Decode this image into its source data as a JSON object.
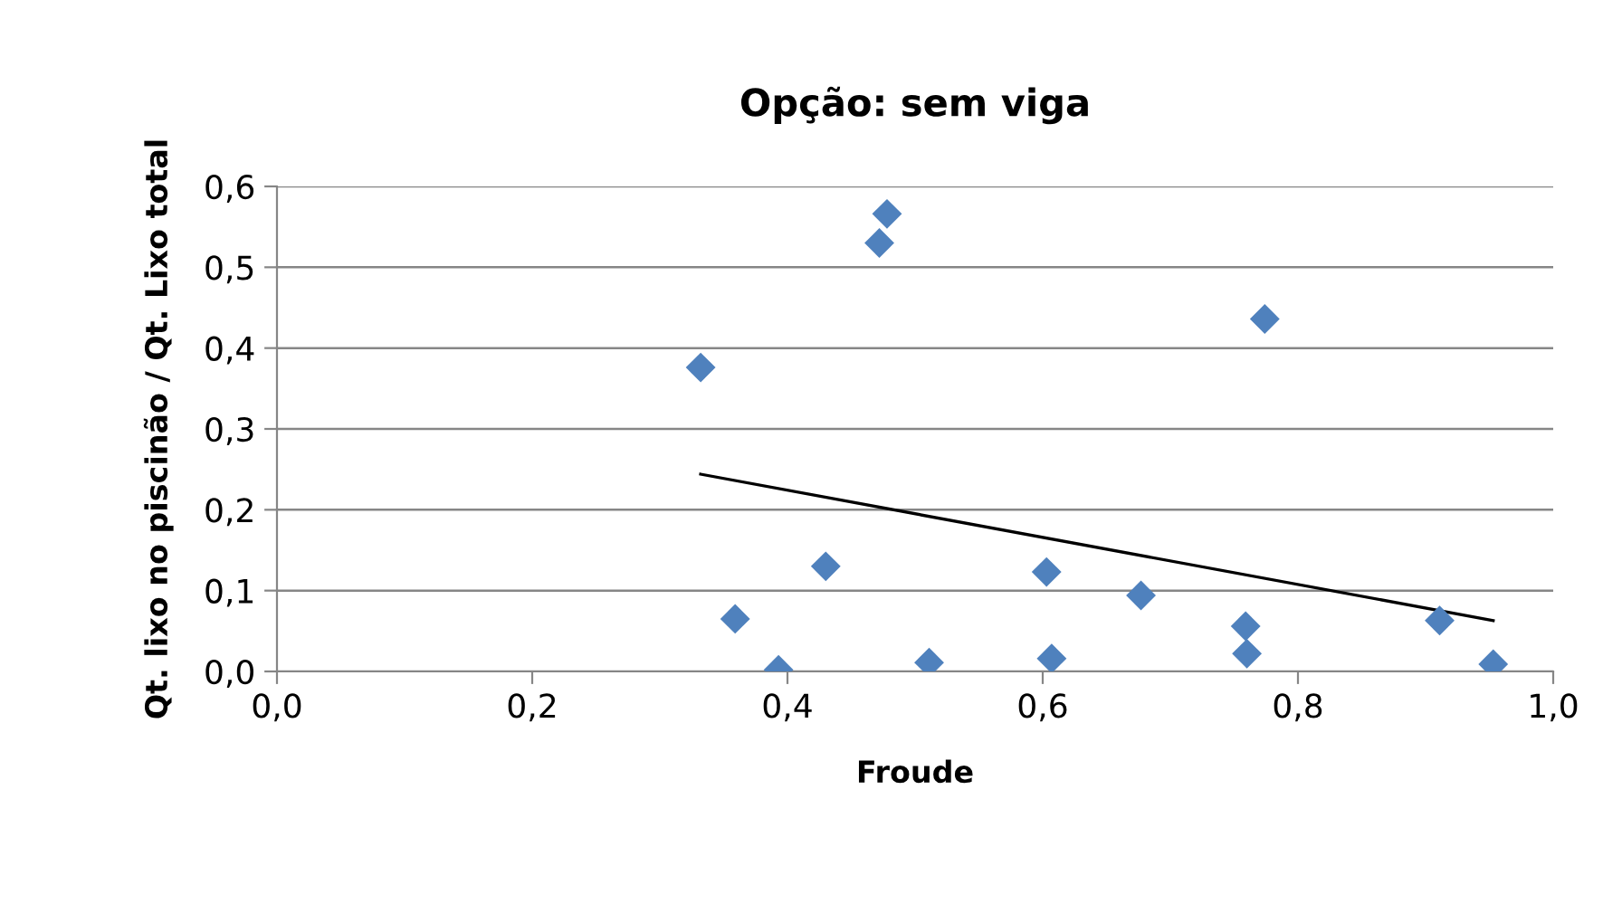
{
  "chart_data": {
    "type": "scatter",
    "title": "Opção: sem viga",
    "xlabel": "Froude",
    "ylabel": "Qt. lixo no piscinão / Qt. Lixo total",
    "series": [
      {
        "color": "#4f81bd",
        "marker": "diamond",
        "x": [
          0.332,
          0.359,
          0.393,
          0.43,
          0.472,
          0.478,
          0.511,
          0.603,
          0.607,
          0.677,
          0.759,
          0.76,
          0.774,
          0.911,
          0.953
        ],
        "values": [
          0.376,
          0.065,
          0.002,
          0.13,
          0.53,
          0.566,
          0.011,
          0.123,
          0.016,
          0.094,
          0.056,
          0.022,
          0.436,
          0.063,
          0.009
        ]
      },
      {
        "type": "line",
        "color": "#000000",
        "marker": "none",
        "x": [
          0.332,
          0.953
        ],
        "values": [
          0.244,
          0.063
        ]
      }
    ],
    "xlim": [
      0,
      1
    ],
    "xticks": [
      {
        "value": 0,
        "label": "0,0"
      },
      {
        "value": 0.2,
        "label": "0,2"
      },
      {
        "value": 0.4,
        "label": "0,4"
      },
      {
        "value": 0.6,
        "label": "0,6"
      },
      {
        "value": 0.8,
        "label": "0,8"
      },
      {
        "value": 1,
        "label": "1,0"
      }
    ],
    "ylim": [
      0,
      0.6
    ],
    "yticks": [
      {
        "value": 0,
        "label": "0,0"
      },
      {
        "value": 0.1,
        "label": "0,1"
      },
      {
        "value": 0.2,
        "label": "0,2"
      },
      {
        "value": 0.3,
        "label": "0,3"
      },
      {
        "value": 0.4,
        "label": "0,4"
      },
      {
        "value": 0.5,
        "label": "0,5"
      },
      {
        "value": 0.6,
        "label": "0,6"
      }
    ],
    "grid": "y",
    "legend": false
  }
}
